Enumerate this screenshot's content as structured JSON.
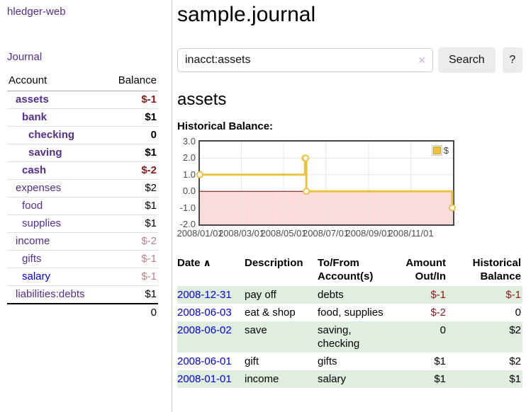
{
  "colors": {
    "link_purple": "#552D90",
    "link_blue": "#0000E0",
    "negative_strong": "#8B1A1A",
    "negative_soft": "#BF8080",
    "row_shade_green": "#DFEEDF",
    "button_gray": "#ECECEC",
    "chart_line": "#EDC240",
    "chart_zero_line": "#8B0000",
    "chart_negative_fill": "#FBDBDB",
    "chart_grid": "#E6E6E6",
    "chart_border": "#474747"
  },
  "app": {
    "title": "hledger-web"
  },
  "sidebar": {
    "nav_journal": "Journal",
    "accounts": {
      "header_account": "Account",
      "header_balance": "Balance",
      "rows": [
        {
          "name": "assets",
          "balance": "$-1"
        },
        {
          "name": "bank",
          "balance": "$1"
        },
        {
          "name": "checking",
          "balance": "0"
        },
        {
          "name": "saving",
          "balance": "$1"
        },
        {
          "name": "cash",
          "balance": "$-2"
        },
        {
          "name": "expenses",
          "balance": "$2"
        },
        {
          "name": "food",
          "balance": "$1"
        },
        {
          "name": "supplies",
          "balance": "$1"
        },
        {
          "name": "income",
          "balance": "$-2"
        },
        {
          "name": "gifts",
          "balance": "$-1"
        },
        {
          "name": "salary",
          "balance": "$-1"
        },
        {
          "name": "liabilities:debts",
          "balance": "$1"
        }
      ],
      "total": "0"
    }
  },
  "main": {
    "title": "sample.journal",
    "search": {
      "value": "inacct:assets",
      "clear_icon": "✕",
      "button_label": "Search",
      "help_label": "?"
    },
    "account_heading": "assets",
    "chart_label": "Historical Balance:"
  },
  "chart_data": {
    "type": "line",
    "title": "Historical Balance",
    "step": true,
    "series": [
      {
        "name": "$",
        "points": [
          [
            "2008-01-01",
            1
          ],
          [
            "2008-06-01",
            2
          ],
          [
            "2008-06-02",
            2
          ],
          [
            "2008-06-03",
            0
          ],
          [
            "2008-12-31",
            -1
          ]
        ]
      }
    ],
    "x_range": [
      "2008-01-01",
      "2009-01-01"
    ],
    "ylim": [
      -2,
      3
    ],
    "y_ticks": [
      3,
      2,
      1,
      0,
      -1,
      -2
    ],
    "x_tick_labels": [
      "2008/01/01",
      "2008/03/01",
      "2008/05/01",
      "2008/07/01",
      "2008/09/01",
      "2008/11/01"
    ],
    "legend_label": "$",
    "legend_position": "top-right",
    "grid": true
  },
  "register": {
    "headers": {
      "date": "Date",
      "sort_icon": "∧",
      "description": "Description",
      "account": "To/From Account(s)",
      "amount": "Amount Out/In",
      "balance": "Historical Balance"
    },
    "rows": [
      {
        "date": "2008-12-31",
        "description": "pay off",
        "accounts": "debts",
        "amount": "$-1",
        "balance": "$-1"
      },
      {
        "date": "2008-06-03",
        "description": "eat & shop",
        "accounts": "food, supplies",
        "amount": "$-2",
        "balance": "0"
      },
      {
        "date": "2008-06-02",
        "description": "save",
        "accounts": "saving, checking",
        "amount": "0",
        "balance": "$2"
      },
      {
        "date": "2008-06-01",
        "description": "gift",
        "accounts": "gifts",
        "amount": "$1",
        "balance": "$2"
      },
      {
        "date": "2008-01-01",
        "description": "income",
        "accounts": "salary",
        "amount": "$1",
        "balance": "$1"
      }
    ]
  }
}
